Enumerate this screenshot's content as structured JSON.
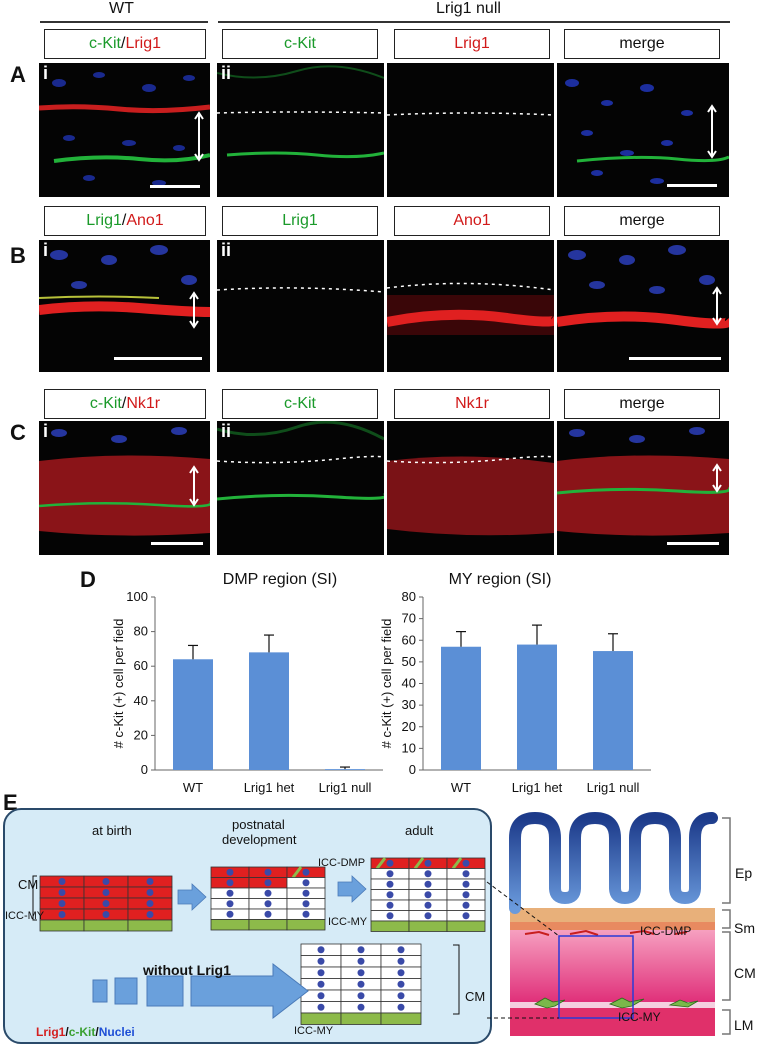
{
  "header": {
    "wt": "WT",
    "null": "Lrig1 null"
  },
  "rows": [
    {
      "letter": "A",
      "tags": [
        [
          [
            "c-Kit",
            "green"
          ],
          [
            "/",
            "dark"
          ],
          [
            "Lrig1",
            "red"
          ]
        ],
        [
          [
            "c-Kit",
            "green"
          ]
        ],
        [
          [
            "Lrig1",
            "red"
          ]
        ],
        [
          [
            "merge",
            "dark"
          ]
        ]
      ]
    },
    {
      "letter": "B",
      "tags": [
        [
          [
            "Lrig1",
            "green"
          ],
          [
            "/",
            "dark"
          ],
          [
            "Ano1",
            "red"
          ]
        ],
        [
          [
            "Lrig1",
            "green"
          ]
        ],
        [
          [
            "Ano1",
            "red"
          ]
        ],
        [
          [
            "merge",
            "dark"
          ]
        ]
      ]
    },
    {
      "letter": "C",
      "tags": [
        [
          [
            "c-Kit",
            "green"
          ],
          [
            "/",
            "dark"
          ],
          [
            "Nk1r",
            "red"
          ]
        ],
        [
          [
            "c-Kit",
            "green"
          ]
        ],
        [
          [
            "Nk1r",
            "red"
          ]
        ],
        [
          [
            "merge",
            "dark"
          ]
        ]
      ]
    }
  ],
  "sub_i": "i",
  "sub_ii": "ii",
  "panel_d": "D",
  "panel_e": "E",
  "chart_data": [
    {
      "type": "bar",
      "title": "DMP region (SI)",
      "ylabel": "# c-Kit (+) cell per field",
      "categories": [
        "WT",
        "Lrig1 het",
        "Lrig1 null"
      ],
      "values": [
        64,
        68,
        0.5
      ],
      "errors": [
        8,
        10,
        1.2
      ],
      "ylim": [
        0,
        100
      ],
      "yticks": [
        0,
        20,
        40,
        60,
        80,
        100
      ]
    },
    {
      "type": "bar",
      "title": "MY region (SI)",
      "ylabel": "# c-Kit (+) cell per field",
      "categories": [
        "WT",
        "Lrig1 het",
        "Lrig1 null"
      ],
      "values": [
        57,
        58,
        55
      ],
      "errors": [
        7,
        9,
        8
      ],
      "ylim": [
        0,
        80
      ],
      "yticks": [
        0,
        10,
        20,
        30,
        40,
        50,
        60,
        70,
        80
      ]
    }
  ],
  "schematic": {
    "at_birth": "at birth",
    "postnatal_l1": "postnatal",
    "postnatal_l2": "development",
    "adult": "adult",
    "icc_dmp": "ICC-DMP",
    "icc_my": "ICC-MY",
    "cm": "CM",
    "without": "without Lrig1",
    "legend": [
      [
        "Lrig1",
        "#d42020"
      ],
      [
        "/",
        "#111"
      ],
      [
        "c-Kit",
        "#3aa030"
      ],
      [
        "/",
        "#111"
      ],
      [
        "Nuclei",
        "#1f4fd6"
      ]
    ]
  },
  "anatomy": {
    "ep": "Ep",
    "sm": "Sm",
    "cm": "CM",
    "lm": "LM",
    "icc_dmp": "ICC-DMP",
    "icc_my": "ICC-MY"
  },
  "colors": {
    "bar": "#5b8fd6",
    "box_bg": "#d6ebf7",
    "cm_red": "#e02020",
    "icc_green": "#8dba4a",
    "nucleus": "#3a4aa8"
  }
}
